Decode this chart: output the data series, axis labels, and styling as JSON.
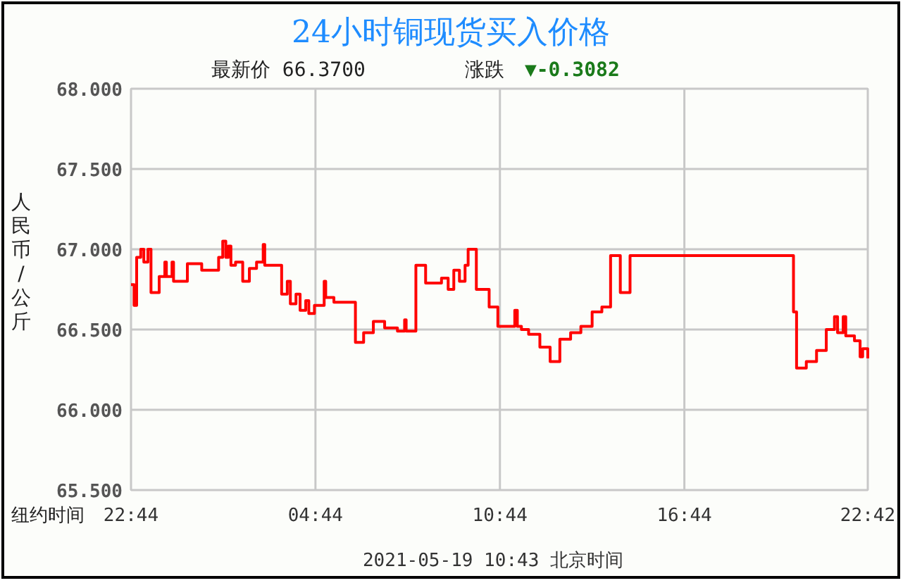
{
  "chart_data": {
    "type": "step",
    "title": "24小时铜现货买入价格",
    "subtitle": "最新价  66.3700",
    "xlabel": "纽约时间",
    "ylabel": "人民币/公斤",
    "annotations": [
      "涨跌 ▼-0.3082",
      "2021-05-19 10:43  北京时间"
    ],
    "xlim": [
      "2021-05-17T22:44",
      "2021-05-18T22:42"
    ],
    "xticks": [
      {
        "value": "2021-05-17T22:44",
        "label": "22:44"
      },
      {
        "value": "2021-05-18T04:44",
        "label": "04:44"
      },
      {
        "value": "2021-05-18T10:44",
        "label": "10:44"
      },
      {
        "value": "2021-05-18T16:44",
        "label": "16:44"
      },
      {
        "value": "2021-05-18T22:42",
        "label": "22:42"
      }
    ],
    "ylim": [
      65.5,
      68
    ],
    "yticks": [
      {
        "value": 65.5,
        "label": "65.500"
      },
      {
        "value": 66,
        "label": "66.000"
      },
      {
        "value": 66.5,
        "label": "66.500"
      },
      {
        "value": 67,
        "label": "67.000"
      },
      {
        "value": 67.5,
        "label": "67.500"
      },
      {
        "value": 68,
        "label": "68.000"
      }
    ],
    "grid": true,
    "series": [
      {
        "color": "#ff0000",
        "x": [
          "2021-05-17T22:44",
          "2021-05-17T22:50",
          "2021-05-17T22:55",
          "2021-05-17T23:03",
          "2021-05-17T23:09",
          "2021-05-17T23:17",
          "2021-05-17T23:23",
          "2021-05-17T23:39",
          "2021-05-17T23:50",
          "2021-05-17T23:53",
          "2021-05-18T00:04",
          "2021-05-18T00:07",
          "2021-05-18T00:34",
          "2021-05-18T01:02",
          "2021-05-18T01:35",
          "2021-05-18T01:43",
          "2021-05-18T01:49",
          "2021-05-18T01:54",
          "2021-05-18T01:59",
          "2021-05-18T02:08",
          "2021-05-18T02:22",
          "2021-05-18T02:35",
          "2021-05-18T02:49",
          "2021-05-18T03:02",
          "2021-05-18T03:05",
          "2021-05-18T03:38",
          "2021-05-18T03:49",
          "2021-05-18T03:55",
          "2021-05-18T04:06",
          "2021-05-18T04:14",
          "2021-05-18T04:25",
          "2021-05-18T04:31",
          "2021-05-18T04:42",
          "2021-05-18T05:01",
          "2021-05-18T05:04",
          "2021-05-18T05:20",
          "2021-05-18T06:02",
          "2021-05-18T06:18",
          "2021-05-18T06:37",
          "2021-05-18T06:59",
          "2021-05-18T07:24",
          "2021-05-18T07:38",
          "2021-05-18T07:41",
          "2021-05-18T08:00",
          "2021-05-18T08:19",
          "2021-05-18T08:50",
          "2021-05-18T09:03",
          "2021-05-18T09:14",
          "2021-05-18T09:25",
          "2021-05-18T09:36",
          "2021-05-18T09:42",
          "2021-05-18T09:58",
          "2021-05-18T10:23",
          "2021-05-18T10:40",
          "2021-05-18T11:13",
          "2021-05-18T11:18",
          "2021-05-18T11:26",
          "2021-05-18T11:40",
          "2021-05-18T12:02",
          "2021-05-18T12:22",
          "2021-05-18T12:41",
          "2021-05-18T13:02",
          "2021-05-18T13:22",
          "2021-05-18T13:44",
          "2021-05-18T14:03",
          "2021-05-18T14:20",
          "2021-05-18T14:39",
          "2021-05-18T14:58",
          "2021-05-18T20:17",
          "2021-05-18T20:23",
          "2021-05-18T20:42",
          "2021-05-18T21:02",
          "2021-05-18T21:21",
          "2021-05-18T21:37",
          "2021-05-18T21:43",
          "2021-05-18T21:54",
          "2021-05-18T21:59",
          "2021-05-18T22:16",
          "2021-05-18T22:27",
          "2021-05-18T22:32",
          "2021-05-18T22:42"
        ],
        "values": [
          66.78,
          66.65,
          66.95,
          67.0,
          66.92,
          67.0,
          66.73,
          66.83,
          66.92,
          66.83,
          66.92,
          66.8,
          66.91,
          66.87,
          66.95,
          67.05,
          66.95,
          67.02,
          66.9,
          66.92,
          66.8,
          66.88,
          66.92,
          67.03,
          66.9,
          66.72,
          66.8,
          66.66,
          66.72,
          66.62,
          66.68,
          66.6,
          66.65,
          66.8,
          66.7,
          66.67,
          66.42,
          66.48,
          66.55,
          66.51,
          66.49,
          66.56,
          66.49,
          66.9,
          66.79,
          66.82,
          66.75,
          66.87,
          66.8,
          66.9,
          67.0,
          66.75,
          66.64,
          66.52,
          66.62,
          66.52,
          66.5,
          66.47,
          66.39,
          66.3,
          66.44,
          66.48,
          66.52,
          66.61,
          66.64,
          66.96,
          66.73,
          66.96,
          66.61,
          66.26,
          66.3,
          66.37,
          66.5,
          66.58,
          66.48,
          66.58,
          66.46,
          66.43,
          66.33,
          66.38,
          66.32
        ]
      }
    ]
  }
}
